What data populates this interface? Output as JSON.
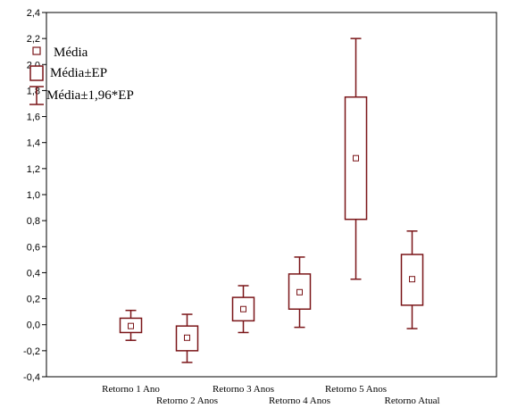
{
  "chart_data": {
    "type": "boxplot",
    "title": "",
    "xlabel": "",
    "ylabel": "",
    "ylim": [
      -0.4,
      2.4
    ],
    "yticks": [
      -0.4,
      -0.2,
      0.0,
      0.2,
      0.4,
      0.6,
      0.8,
      1.0,
      1.2,
      1.4,
      1.6,
      1.8,
      2.0,
      2.2,
      2.4
    ],
    "ytick_labels": [
      "-0,4",
      "-0,2",
      "0,0",
      "0,2",
      "0,4",
      "0,6",
      "0,8",
      "1,0",
      "1,2",
      "1,4",
      "1,6",
      "1,8",
      "2,0",
      "2,2",
      "2,4"
    ],
    "grid": false,
    "legend_position": "top-left",
    "legend": {
      "mean": "Média",
      "se": "Média±EP",
      "ci": "Média±1,96*EP"
    },
    "color": "#7a1518",
    "categories": [
      "Retorno 1 Ano",
      "Retorno 2 Anos",
      "Retorno 3 Anos",
      "Retorno 4 Anos",
      "Retorno 5 Anos",
      "Retorno Atual"
    ],
    "mean": [
      -0.01,
      -0.1,
      0.12,
      0.25,
      1.28,
      0.35
    ],
    "se_low": [
      -0.06,
      -0.2,
      0.03,
      0.12,
      0.81,
      0.15
    ],
    "se_high": [
      0.05,
      -0.01,
      0.21,
      0.39,
      1.75,
      0.54
    ],
    "ci_low": [
      -0.12,
      -0.29,
      -0.06,
      -0.02,
      0.35,
      -0.03
    ],
    "ci_high": [
      0.11,
      0.08,
      0.3,
      0.52,
      2.2,
      0.72
    ]
  }
}
